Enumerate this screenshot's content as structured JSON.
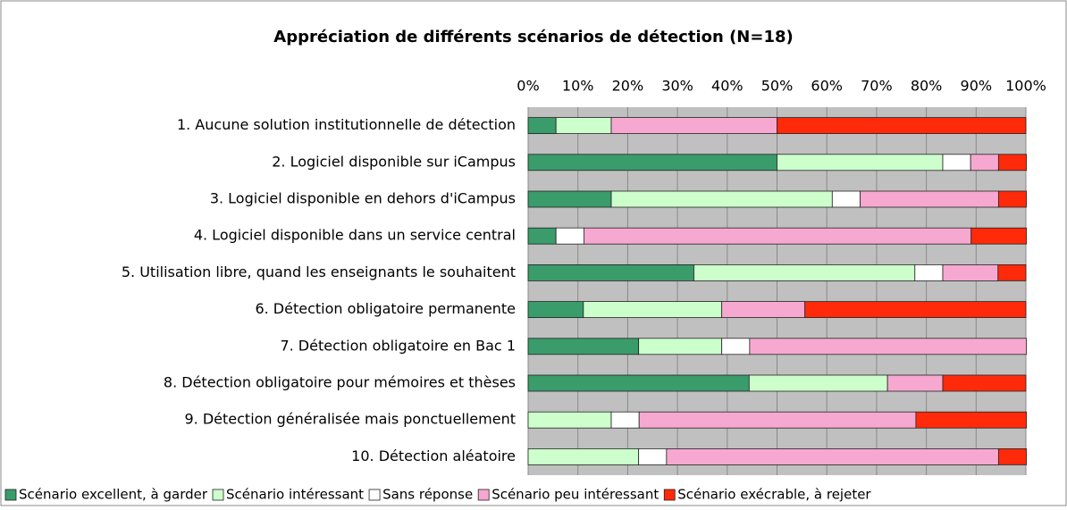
{
  "chart_data": {
    "type": "stacked-bar-horizontal",
    "title": "Appréciation de différents scénarios de détection (N=18)",
    "categories": [
      "1. Aucune solution institutionnelle de détection",
      "2. Logiciel disponible sur iCampus",
      "3. Logiciel disponible en dehors d'iCampus",
      "4. Logiciel disponible dans un service central",
      "5. Utilisation libre, quand les enseignants le souhaitent",
      "6. Détection obligatoire permanente",
      "7. Détection obligatoire en Bac 1",
      "8. Détection obligatoire pour mémoires et thèses",
      "9. Détection généralisée mais ponctuellement",
      "10. Détection aléatoire"
    ],
    "series": [
      {
        "name": "Scénario excellent, à garder",
        "color": "#3a9b6b",
        "values": [
          5.6,
          50,
          16.7,
          5.6,
          33.3,
          11.1,
          22.2,
          44.4,
          0,
          0
        ]
      },
      {
        "name": "Scénario intéressant",
        "color": "#ccffcc",
        "values": [
          11.1,
          33.3,
          44.4,
          0,
          44.4,
          27.8,
          16.7,
          27.8,
          16.7,
          22.2
        ]
      },
      {
        "name": "Sans réponse",
        "color": "#ffffff",
        "values": [
          0,
          5.6,
          5.6,
          5.6,
          5.6,
          0,
          5.6,
          0,
          5.6,
          5.6
        ]
      },
      {
        "name": "Scénario peu intéressant",
        "color": "#f7a8d0",
        "values": [
          33.3,
          5.6,
          27.8,
          77.8,
          11.1,
          16.7,
          55.6,
          11.1,
          55.6,
          66.7
        ]
      },
      {
        "name": "Scénario exécrable, à rejeter",
        "color": "#ff2a0a",
        "values": [
          50,
          5.6,
          5.6,
          11.1,
          5.6,
          44.4,
          0,
          16.7,
          22.2,
          5.6
        ]
      }
    ],
    "xlim": [
      0,
      100
    ],
    "xticks": [
      {
        "value": 0,
        "label": "0%"
      },
      {
        "value": 10,
        "label": "10%"
      },
      {
        "value": 20,
        "label": "20%"
      },
      {
        "value": 30,
        "label": "30%"
      },
      {
        "value": 40,
        "label": "40%"
      },
      {
        "value": 50,
        "label": "50%"
      },
      {
        "value": 60,
        "label": "60%"
      },
      {
        "value": 70,
        "label": "70%"
      },
      {
        "value": 80,
        "label": "80%"
      },
      {
        "value": 90,
        "label": "90%"
      },
      {
        "value": 100,
        "label": "100%"
      }
    ],
    "grid": true,
    "legend": "bottom"
  }
}
